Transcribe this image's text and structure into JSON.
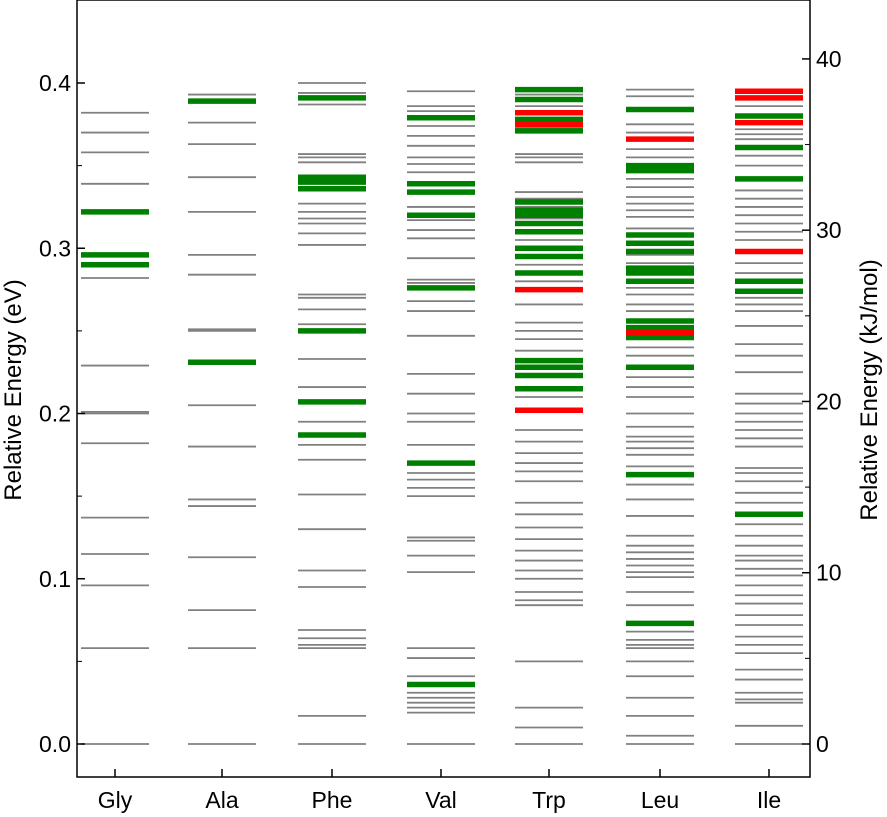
{
  "chart_data": {
    "type": "energy-level-diagram",
    "title": "",
    "ylabel_left": "Relative Energy (eV)",
    "ylabel_right": "Relative Energy (kJ/mol)",
    "ylim_ev": [
      -0.02,
      0.45
    ],
    "yticks_ev": [
      "0.0",
      "0.1",
      "0.2",
      "0.3",
      "0.4"
    ],
    "yticks_kj": [
      "0",
      "10",
      "20",
      "30",
      "40"
    ],
    "categories": [
      "Gly",
      "Ala",
      "Phe",
      "Val",
      "Trp",
      "Leu",
      "Ile"
    ],
    "colors": {
      "gray": "#808080",
      "green": "#008000",
      "red": "#ff0000"
    },
    "levels": {
      "Gly": {
        "gray": [
          0.0,
          0.058,
          0.096,
          0.115,
          0.137,
          0.182,
          0.2,
          0.201,
          0.229,
          0.282,
          0.339,
          0.358,
          0.37,
          0.382
        ],
        "green": [
          0.29,
          0.296,
          0.322
        ],
        "red": []
      },
      "Ala": {
        "gray": [
          0.0,
          0.058,
          0.081,
          0.113,
          0.144,
          0.148,
          0.18,
          0.205,
          0.25,
          0.251,
          0.284,
          0.296,
          0.322,
          0.343,
          0.363,
          0.376,
          0.393
        ],
        "green": [
          0.231,
          0.389
        ],
        "red": []
      },
      "Phe": {
        "gray": [
          0.0,
          0.017,
          0.058,
          0.06,
          0.064,
          0.069,
          0.095,
          0.105,
          0.13,
          0.151,
          0.172,
          0.181,
          0.195,
          0.216,
          0.233,
          0.254,
          0.263,
          0.27,
          0.272,
          0.302,
          0.309,
          0.315,
          0.318,
          0.322,
          0.327,
          0.352,
          0.355,
          0.357,
          0.387,
          0.394,
          0.4
        ],
        "green": [
          0.187,
          0.207,
          0.25,
          0.336,
          0.34,
          0.343,
          0.391
        ],
        "red": []
      },
      "Val": {
        "gray": [
          0.0,
          0.019,
          0.022,
          0.025,
          0.028,
          0.031,
          0.041,
          0.052,
          0.058,
          0.104,
          0.114,
          0.123,
          0.125,
          0.15,
          0.155,
          0.16,
          0.164,
          0.181,
          0.195,
          0.2,
          0.212,
          0.224,
          0.247,
          0.262,
          0.268,
          0.279,
          0.281,
          0.294,
          0.306,
          0.311,
          0.317,
          0.325,
          0.346,
          0.351,
          0.355,
          0.362,
          0.368,
          0.374,
          0.383,
          0.386,
          0.395
        ],
        "green": [
          0.036,
          0.17,
          0.276,
          0.32,
          0.334,
          0.339,
          0.379
        ],
        "red": []
      },
      "Trp": {
        "gray": [
          0.0,
          0.01,
          0.022,
          0.05,
          0.084,
          0.087,
          0.092,
          0.1,
          0.105,
          0.111,
          0.117,
          0.124,
          0.131,
          0.139,
          0.146,
          0.159,
          0.165,
          0.17,
          0.176,
          0.183,
          0.19,
          0.21,
          0.222,
          0.233,
          0.238,
          0.245,
          0.25,
          0.255,
          0.266,
          0.28,
          0.29,
          0.296,
          0.305,
          0.318,
          0.325,
          0.33,
          0.334,
          0.352,
          0.355,
          0.357,
          0.37,
          0.373,
          0.386,
          0.393
        ],
        "green": [
          0.215,
          0.223,
          0.228,
          0.232,
          0.285,
          0.295,
          0.3,
          0.31,
          0.315,
          0.32,
          0.323,
          0.328,
          0.371,
          0.378,
          0.39,
          0.396
        ],
        "red": [
          0.202,
          0.275,
          0.375,
          0.382
        ]
      },
      "Leu": {
        "gray": [
          0.0,
          0.005,
          0.017,
          0.028,
          0.041,
          0.05,
          0.058,
          0.06,
          0.063,
          0.068,
          0.084,
          0.092,
          0.101,
          0.104,
          0.108,
          0.112,
          0.116,
          0.12,
          0.126,
          0.138,
          0.148,
          0.157,
          0.168,
          0.175,
          0.179,
          0.183,
          0.186,
          0.192,
          0.2,
          0.21,
          0.216,
          0.222,
          0.235,
          0.24,
          0.262,
          0.266,
          0.272,
          0.276,
          0.291,
          0.296,
          0.312,
          0.319,
          0.323,
          0.327,
          0.331,
          0.337,
          0.342,
          0.355,
          0.36,
          0.37,
          0.375,
          0.392,
          0.396
        ],
        "green": [
          0.073,
          0.163,
          0.228,
          0.246,
          0.252,
          0.256,
          0.28,
          0.285,
          0.288,
          0.298,
          0.303,
          0.308,
          0.347,
          0.35,
          0.384
        ],
        "red": [
          0.249,
          0.366
        ]
      },
      "Ile": {
        "gray": [
          0.0,
          0.011,
          0.025,
          0.027,
          0.031,
          0.039,
          0.045,
          0.055,
          0.06,
          0.065,
          0.072,
          0.078,
          0.085,
          0.09,
          0.096,
          0.102,
          0.106,
          0.111,
          0.114,
          0.12,
          0.126,
          0.133,
          0.146,
          0.152,
          0.159,
          0.164,
          0.167,
          0.18,
          0.185,
          0.19,
          0.195,
          0.2,
          0.206,
          0.212,
          0.225,
          0.235,
          0.242,
          0.253,
          0.262,
          0.266,
          0.27,
          0.285,
          0.291,
          0.305,
          0.31,
          0.315,
          0.32,
          0.325,
          0.33,
          0.335,
          0.35,
          0.356,
          0.366,
          0.369,
          0.372,
          0.386
        ],
        "green": [
          0.139,
          0.274,
          0.28,
          0.342,
          0.361,
          0.38
        ],
        "red": [
          0.298,
          0.376,
          0.391,
          0.395
        ]
      }
    }
  }
}
